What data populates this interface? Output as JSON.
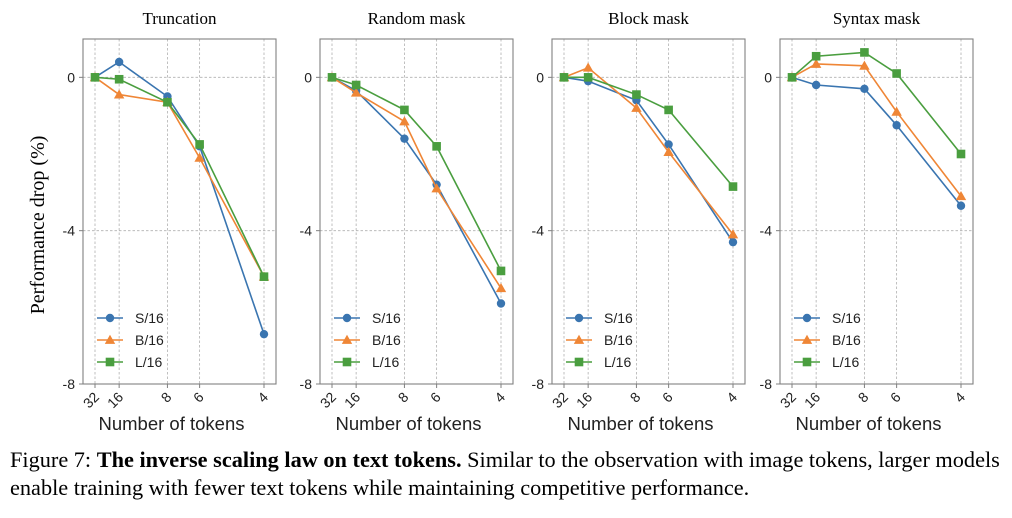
{
  "figure": {
    "ylabel": "Performance drop (%)",
    "xlabel": "Number of tokens"
  },
  "caption": {
    "label": "Figure 7:",
    "title": "The inverse scaling law on text tokens.",
    "text": "Similar to the observation with image tokens, larger models enable training with fewer text tokens while maintaining competitive performance."
  },
  "colors": {
    "S/16": "#3a75b0",
    "B/16": "#ef8636",
    "L/16": "#4a9e3f"
  },
  "chart_data": [
    {
      "type": "line",
      "title": "Truncation",
      "xlabel": "Number of tokens",
      "ylabel": "Performance drop (%)",
      "x_scale": "reciprocal",
      "x_ticks": [
        32,
        16,
        8,
        6,
        4
      ],
      "ylim": [
        -8,
        1
      ],
      "y_ticks": [
        0,
        -4,
        -8
      ],
      "grid": true,
      "legend": "lower-left",
      "series": [
        {
          "name": "S/16",
          "marker": "circle",
          "x": [
            32,
            16,
            8,
            6,
            4
          ],
          "y": [
            0,
            0.4,
            -0.5,
            -1.8,
            -6.7
          ]
        },
        {
          "name": "B/16",
          "marker": "triangle",
          "x": [
            32,
            16,
            8,
            6,
            4
          ],
          "y": [
            0,
            -0.45,
            -0.65,
            -2.1,
            -5.2
          ]
        },
        {
          "name": "L/16",
          "marker": "square",
          "x": [
            32,
            16,
            8,
            6,
            4
          ],
          "y": [
            0,
            -0.05,
            -0.65,
            -1.75,
            -5.2
          ]
        }
      ]
    },
    {
      "type": "line",
      "title": "Random mask",
      "xlabel": "Number of tokens",
      "x_scale": "reciprocal",
      "x_ticks": [
        32,
        16,
        8,
        6,
        4
      ],
      "ylim": [
        -8,
        1
      ],
      "y_ticks": [
        0,
        -4,
        -8
      ],
      "grid": true,
      "legend": "lower-left",
      "series": [
        {
          "name": "S/16",
          "marker": "circle",
          "x": [
            32,
            16,
            8,
            6,
            4
          ],
          "y": [
            0,
            -0.35,
            -1.6,
            -2.8,
            -5.9
          ]
        },
        {
          "name": "B/16",
          "marker": "triangle",
          "x": [
            32,
            16,
            8,
            6,
            4
          ],
          "y": [
            0,
            -0.4,
            -1.15,
            -2.9,
            -5.5
          ]
        },
        {
          "name": "L/16",
          "marker": "square",
          "x": [
            32,
            16,
            8,
            6,
            4
          ],
          "y": [
            0,
            -0.2,
            -0.85,
            -1.8,
            -5.05
          ]
        }
      ]
    },
    {
      "type": "line",
      "title": "Block mask",
      "xlabel": "Number of tokens",
      "x_scale": "reciprocal",
      "x_ticks": [
        32,
        16,
        8,
        6,
        4
      ],
      "ylim": [
        -8,
        1
      ],
      "y_ticks": [
        0,
        -4,
        -8
      ],
      "grid": true,
      "legend": "lower-left",
      "series": [
        {
          "name": "S/16",
          "marker": "circle",
          "x": [
            32,
            16,
            8,
            6,
            4
          ],
          "y": [
            0,
            -0.1,
            -0.6,
            -1.75,
            -4.3
          ]
        },
        {
          "name": "B/16",
          "marker": "triangle",
          "x": [
            32,
            16,
            8,
            6,
            4
          ],
          "y": [
            0,
            0.25,
            -0.8,
            -1.95,
            -4.1
          ]
        },
        {
          "name": "L/16",
          "marker": "square",
          "x": [
            32,
            16,
            8,
            6,
            4
          ],
          "y": [
            0,
            0,
            -0.45,
            -0.85,
            -2.85
          ]
        }
      ]
    },
    {
      "type": "line",
      "title": "Syntax mask",
      "xlabel": "Number of tokens",
      "x_scale": "reciprocal",
      "x_ticks": [
        32,
        16,
        8,
        6,
        4
      ],
      "ylim": [
        -8,
        1
      ],
      "y_ticks": [
        0,
        -4,
        -8
      ],
      "grid": true,
      "legend": "lower-left",
      "series": [
        {
          "name": "S/16",
          "marker": "circle",
          "x": [
            32,
            16,
            8,
            6,
            4
          ],
          "y": [
            0,
            -0.2,
            -0.3,
            -1.25,
            -3.35
          ]
        },
        {
          "name": "B/16",
          "marker": "triangle",
          "x": [
            32,
            16,
            8,
            6,
            4
          ],
          "y": [
            0,
            0.35,
            0.3,
            -0.9,
            -3.1
          ]
        },
        {
          "name": "L/16",
          "marker": "square",
          "x": [
            32,
            16,
            8,
            6,
            4
          ],
          "y": [
            0,
            0.55,
            0.65,
            0.1,
            -2.0
          ]
        }
      ]
    }
  ]
}
